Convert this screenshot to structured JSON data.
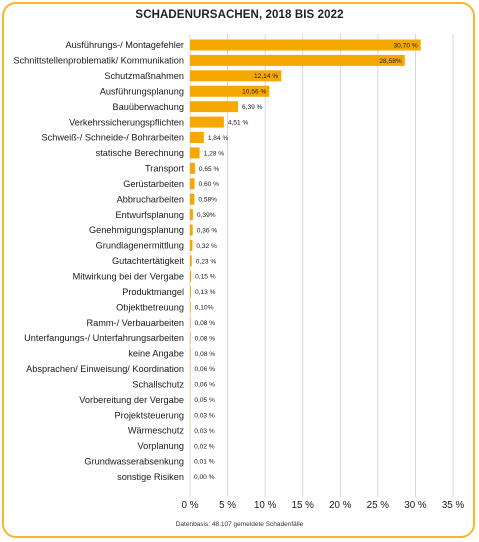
{
  "chart_data": {
    "type": "bar",
    "orientation": "horizontal",
    "title": "SCHADENURSACHEN, 2018 BIS 2022",
    "footnote": "Datenbasis: 48.107 gemeldete Schadenfälle",
    "xlim": [
      0,
      35
    ],
    "xticks": [
      "0 %",
      "5 %",
      "10 %",
      "15 %",
      "20 %",
      "25 %",
      "30 %",
      "35 %"
    ],
    "grid": true,
    "bar_color": "#f5a800",
    "categories": [
      "Ausführungs-/ Montagefehler",
      "Schnittstellenproblematik/ Kommunikation",
      "Schutzmaßnahmen",
      "Ausführungsplanung",
      "Bauüberwachung",
      "Verkehrssicherungspflichten",
      "Schweiß-/ Schneide-/ Bohrarbeiten",
      "statische Berechnung",
      "Transport",
      "Gerüstarbeiten",
      "Abbrucharbeiten",
      "Entwurfsplanung",
      "Genehmigungsplanung",
      "Grundlagenermittlung",
      "Gutachtertätigkeit",
      "Mitwirkung bei der Vergabe",
      "Produktmangel",
      "Objektbetreuung",
      "Ramm-/ Verbauarbeiten",
      "Unterfangungs-/ Unterfahrungsarbeiten",
      "keine Angabe",
      "Absprachen/ Einweisung/ Koordination",
      "Schallschutz",
      "Vorbereitung der Vergabe",
      "Projektsteuerung",
      "Wärmeschutz",
      "Vorplanung",
      "Grundwasserabsenkung",
      "sonstige Risiken"
    ],
    "values": [
      30.7,
      28.58,
      12.14,
      10.56,
      6.39,
      4.51,
      1.84,
      1.28,
      0.65,
      0.6,
      0.58,
      0.39,
      0.36,
      0.32,
      0.23,
      0.15,
      0.13,
      0.1,
      0.08,
      0.08,
      0.08,
      0.06,
      0.06,
      0.05,
      0.03,
      0.03,
      0.02,
      0.01,
      0.0
    ],
    "labels": [
      "30,70 %",
      "28,58%",
      "12,14 %",
      "10,56 %",
      "6,39 %",
      "4,51 %",
      "1,84 %",
      "1,28 %",
      "0,65 %",
      "0,60 %",
      "0,58%",
      "0,39%",
      "0,36 %",
      "0,32 %",
      "0,23 %",
      "0,15 %",
      "0,13 %",
      "0,10%",
      "0,08 %",
      "0,08 %",
      "0,08 %",
      "0,06 %",
      "0,06 %",
      "0,05 %",
      "0,03 %",
      "0,03 %",
      "0,02 %",
      "0,01 %",
      "0,00 %"
    ]
  }
}
